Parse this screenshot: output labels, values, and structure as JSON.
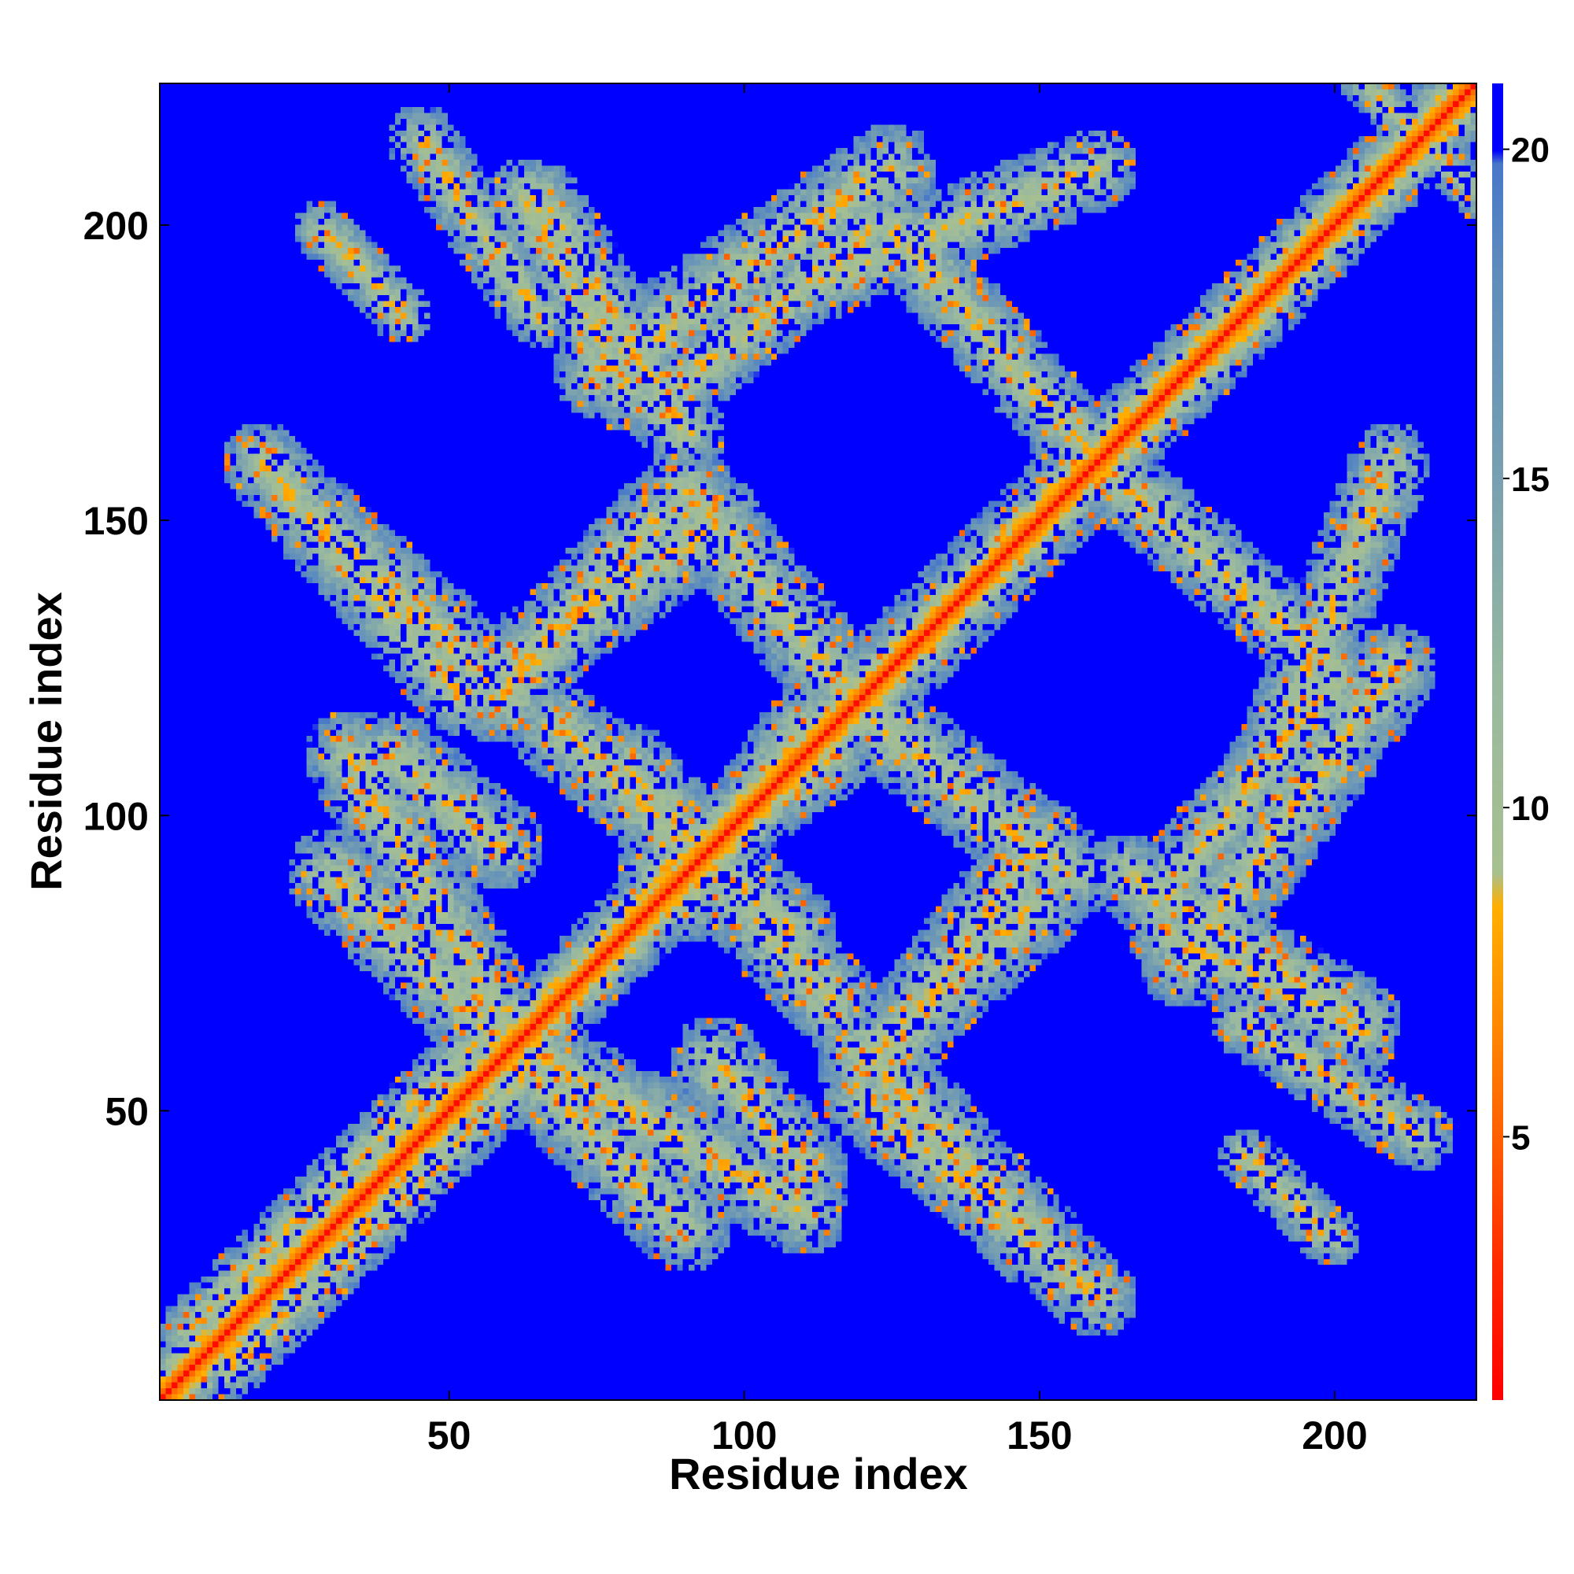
{
  "chart_data": {
    "type": "heatmap",
    "title": "",
    "xlabel": "Residue index",
    "ylabel": "Residue index",
    "n_residues": 224,
    "xlim": [
      1,
      224
    ],
    "ylim": [
      1,
      224
    ],
    "x_ticks": [
      50,
      100,
      150,
      200
    ],
    "y_ticks": [
      50,
      100,
      150,
      200
    ],
    "colorbar": {
      "range": [
        1,
        21
      ],
      "ticks": [
        5,
        10,
        15,
        20
      ],
      "stops": [
        {
          "value": 1,
          "color": "#ff0000"
        },
        {
          "value": 3,
          "color": "#ff2a00"
        },
        {
          "value": 5,
          "color": "#ff6000"
        },
        {
          "value": 7,
          "color": "#ff9000"
        },
        {
          "value": 8.5,
          "color": "#ffb000"
        },
        {
          "value": 9,
          "color": "#a8c090"
        },
        {
          "value": 12,
          "color": "#98b8a0"
        },
        {
          "value": 15,
          "color": "#78a0b0"
        },
        {
          "value": 18,
          "color": "#5f8ebc"
        },
        {
          "value": 19.8,
          "color": "#4878c8"
        },
        {
          "value": 20,
          "color": "#0000ff"
        },
        {
          "value": 21,
          "color": "#0000ff"
        }
      ],
      "saturated_color": "#0000ff"
    },
    "contact_bands": [
      {
        "from": [
          5,
          12
        ],
        "to": [
          60,
          67
        ],
        "width": 5
      },
      {
        "from": [
          27,
          150
        ],
        "to": [
          60,
          120
        ],
        "width": 8
      },
      {
        "from": [
          30,
          90
        ],
        "to": [
          60,
          60
        ],
        "width": 8
      },
      {
        "from": [
          40,
          110
        ],
        "to": [
          58,
          95
        ],
        "width": 8
      },
      {
        "from": [
          45,
          215
        ],
        "to": [
          65,
          185
        ],
        "width": 6
      },
      {
        "from": [
          60,
          125
        ],
        "to": [
          95,
          150
        ],
        "width": 8
      },
      {
        "from": [
          62,
          60
        ],
        "to": [
          110,
          33
        ],
        "width": 8
      },
      {
        "from": [
          63,
          205
        ],
        "to": [
          80,
          172
        ],
        "width": 7
      },
      {
        "from": [
          75,
          175
        ],
        "to": [
          125,
          210
        ],
        "width": 8
      },
      {
        "from": [
          80,
          108
        ],
        "to": [
          115,
          68
        ],
        "width": 8
      },
      {
        "from": [
          85,
          90
        ],
        "to": [
          115,
          110
        ],
        "width": 7
      },
      {
        "from": [
          110,
          190
        ],
        "to": [
          160,
          210
        ],
        "width": 7
      },
      {
        "from": [
          120,
          118
        ],
        "to": [
          155,
          90
        ],
        "width": 8
      },
      {
        "from": [
          120,
          58
        ],
        "to": [
          150,
          85
        ],
        "width": 8
      },
      {
        "from": [
          120,
          120
        ],
        "to": [
          160,
          160
        ],
        "width": 8
      },
      {
        "from": [
          120,
          52
        ],
        "to": [
          160,
          18
        ],
        "width": 7
      },
      {
        "from": [
          160,
          160
        ],
        "to": [
          200,
          125
        ],
        "width": 7
      },
      {
        "from": [
          165,
          90
        ],
        "to": [
          205,
          65
        ],
        "width": 7
      },
      {
        "from": [
          170,
          85
        ],
        "to": [
          200,
          122
        ],
        "width": 7
      },
      {
        "from": [
          185,
          42
        ],
        "to": [
          200,
          28
        ],
        "width": 5
      },
      {
        "from": [
          205,
          225
        ],
        "to": [
          225,
          205
        ],
        "width": 4
      },
      {
        "from": [
          205,
          205
        ],
        "to": [
          225,
          225
        ],
        "width": 4
      }
    ]
  }
}
